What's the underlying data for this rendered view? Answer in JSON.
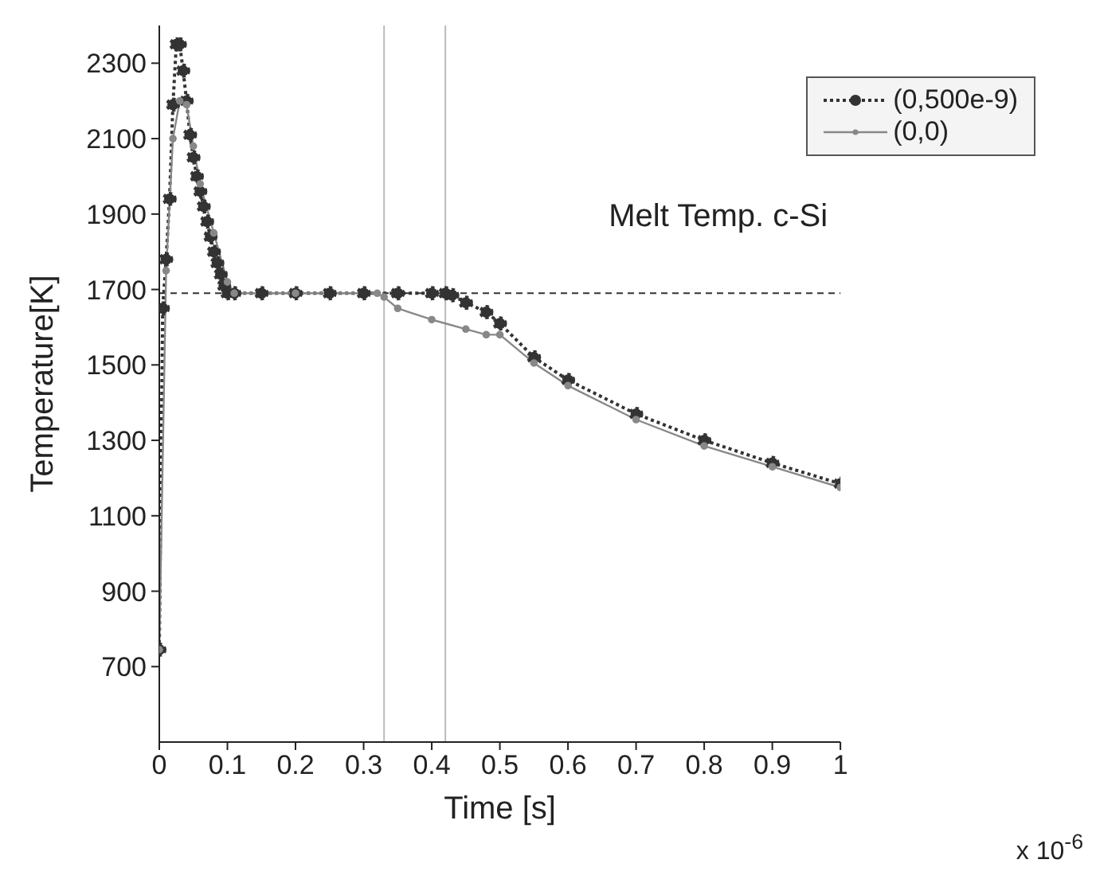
{
  "chart_data": {
    "type": "line",
    "xlabel": "Time [s]",
    "ylabel": "Temperature[K]",
    "xlim": [
      0,
      1
    ],
    "xticks": [
      0,
      0.1,
      0.2,
      0.3,
      0.4,
      0.5,
      0.6,
      0.7,
      0.8,
      0.9,
      1
    ],
    "ylim": [
      500,
      2400
    ],
    "yticks": [
      700,
      900,
      1100,
      1300,
      1500,
      1700,
      1900,
      2100,
      2300
    ],
    "grid": false,
    "legend": "top right",
    "annotations": [
      "x 10$^{-6}$"
    ],
    "ref_lines": [
      {
        "axis": "y",
        "value": 1690,
        "label": "Melt Temp. c-Si",
        "color": "#333333",
        "line_style": "dashed"
      },
      {
        "axis": "x",
        "value": 0.33,
        "color": "#bbbbbb",
        "line_style": "solid"
      },
      {
        "axis": "x",
        "value": 0.42,
        "color": "#bbbbbb",
        "line_style": "solid"
      }
    ],
    "series": [
      {
        "name": "(0,500e-9)",
        "color": "#333333",
        "line_style": "dotted",
        "marker": "circle",
        "x": [
          0,
          0.005,
          0.01,
          0.015,
          0.02,
          0.025,
          0.03,
          0.035,
          0.04,
          0.045,
          0.05,
          0.055,
          0.06,
          0.065,
          0.07,
          0.075,
          0.08,
          0.085,
          0.09,
          0.095,
          0.1,
          0.11,
          0.15,
          0.2,
          0.25,
          0.3,
          0.35,
          0.4,
          0.42,
          0.43,
          0.45,
          0.48,
          0.5,
          0.55,
          0.6,
          0.7,
          0.8,
          0.9,
          1
        ],
        "values": [
          745,
          1650,
          1780,
          1940,
          2190,
          2350,
          2350,
          2280,
          2200,
          2110,
          2050,
          2000,
          1960,
          1920,
          1880,
          1840,
          1800,
          1770,
          1740,
          1710,
          1690,
          1690,
          1690,
          1690,
          1690,
          1690,
          1690,
          1690,
          1690,
          1685,
          1665,
          1640,
          1610,
          1520,
          1460,
          1370,
          1300,
          1240,
          1185
        ]
      },
      {
        "name": "(0,0)",
        "color": "#888888",
        "line_style": "solid",
        "marker": "circle",
        "x": [
          0,
          0.01,
          0.02,
          0.03,
          0.04,
          0.05,
          0.06,
          0.08,
          0.1,
          0.11,
          0.2,
          0.32,
          0.33,
          0.35,
          0.4,
          0.45,
          0.48,
          0.5,
          0.55,
          0.6,
          0.7,
          0.8,
          0.9,
          1
        ],
        "values": [
          745,
          1750,
          2100,
          2200,
          2190,
          2080,
          1980,
          1850,
          1720,
          1690,
          1690,
          1690,
          1680,
          1650,
          1620,
          1595,
          1580,
          1580,
          1505,
          1445,
          1355,
          1285,
          1230,
          1175
        ]
      }
    ]
  }
}
